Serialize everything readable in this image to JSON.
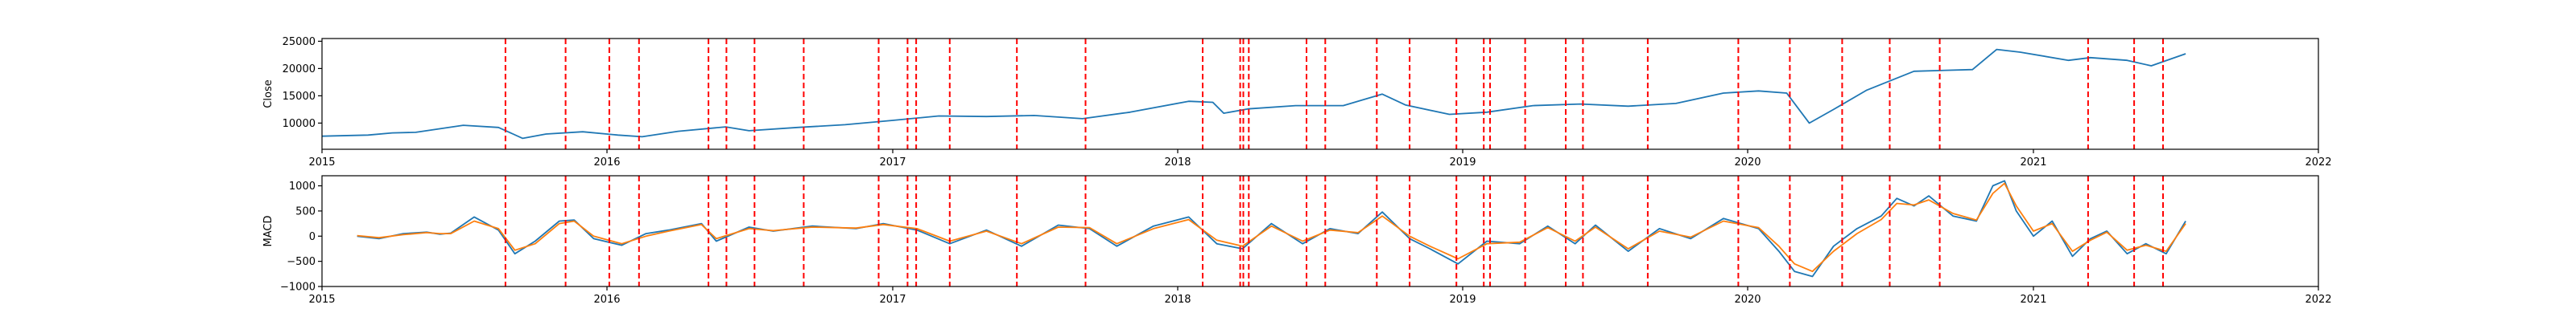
{
  "chart_data": [
    {
      "type": "line",
      "ylabel": "Close",
      "xlim": [
        "2015-01-01",
        "2022-01-01"
      ],
      "ylim": [
        5200,
        25500
      ],
      "xticks": [
        "2015-01-01",
        "2016-01-01",
        "2017-01-01",
        "2018-01-01",
        "2019-01-01",
        "2020-01-01",
        "2021-01-01",
        "2022-01-01"
      ],
      "xtick_labels": [
        "2015",
        "2016",
        "2017",
        "2018",
        "2019",
        "2020",
        "2021",
        "2022"
      ],
      "yticks": [
        10000,
        15000,
        20000,
        25000
      ],
      "ytick_labels": [
        "10000",
        "15000",
        "20000",
        "25000"
      ],
      "grid": false,
      "series": [
        {
          "color": "#1f77b4",
          "x": [
            "2015-01-01",
            "2015-03-01",
            "2015-04-01",
            "2015-05-01",
            "2015-07-01",
            "2015-08-15",
            "2015-09-15",
            "2015-10-15",
            "2015-12-01",
            "2016-01-15",
            "2016-02-15",
            "2016-04-01",
            "2016-06-01",
            "2016-07-01",
            "2016-09-01",
            "2016-11-01",
            "2017-01-01",
            "2017-03-01",
            "2017-05-01",
            "2017-07-01",
            "2017-09-01",
            "2017-11-01",
            "2018-01-15",
            "2018-02-15",
            "2018-03-01",
            "2018-04-01",
            "2018-06-01",
            "2018-08-01",
            "2018-09-20",
            "2018-10-20",
            "2018-12-15",
            "2019-02-01",
            "2019-04-01",
            "2019-06-01",
            "2019-08-01",
            "2019-10-01",
            "2019-12-01",
            "2020-01-15",
            "2020-02-20",
            "2020-03-20",
            "2020-04-20",
            "2020-06-01",
            "2020-08-01",
            "2020-10-15",
            "2020-11-15",
            "2020-12-15",
            "2021-02-15",
            "2021-03-15",
            "2021-05-01",
            "2021-06-01",
            "2021-07-15"
          ],
          "y": [
            7600,
            7800,
            8200,
            8300,
            9600,
            9200,
            7200,
            8000,
            8400,
            7800,
            7500,
            8500,
            9300,
            8600,
            9200,
            9700,
            10500,
            11300,
            11200,
            11400,
            10800,
            12000,
            14000,
            13800,
            11800,
            12600,
            13200,
            13200,
            15300,
            13300,
            11600,
            12000,
            13200,
            13500,
            13100,
            13600,
            15500,
            15900,
            15500,
            10000,
            12500,
            16000,
            19500,
            19800,
            23500,
            23000,
            21500,
            22000,
            21500,
            20500,
            22700
          ]
        }
      ],
      "vlines": {
        "color": "#ff0000",
        "style": "dashed",
        "x": [
          "2015-08-24",
          "2015-11-09",
          "2016-01-04",
          "2016-02-11",
          "2016-05-10",
          "2016-06-02",
          "2016-07-08",
          "2016-09-09",
          "2016-12-14",
          "2017-01-20",
          "2017-01-31",
          "2017-03-15",
          "2017-06-09",
          "2017-09-05",
          "2018-02-02",
          "2018-03-22",
          "2018-03-26",
          "2018-04-02",
          "2018-06-15",
          "2018-07-09",
          "2018-09-13",
          "2018-10-25",
          "2018-12-24",
          "2019-01-28",
          "2019-02-05",
          "2019-03-22",
          "2019-05-13",
          "2019-06-04",
          "2019-08-26",
          "2019-12-20",
          "2020-02-24",
          "2020-05-01",
          "2020-07-01",
          "2020-09-03",
          "2021-03-12",
          "2021-05-10",
          "2021-06-16"
        ]
      }
    },
    {
      "type": "line",
      "ylabel": "MACD",
      "xlim": [
        "2015-01-01",
        "2022-01-01"
      ],
      "ylim": [
        -1000,
        1200
      ],
      "xticks": [
        "2015-01-01",
        "2016-01-01",
        "2017-01-01",
        "2018-01-01",
        "2019-01-01",
        "2020-01-01",
        "2021-01-01",
        "2022-01-01"
      ],
      "xtick_labels": [
        "2015",
        "2016",
        "2017",
        "2018",
        "2019",
        "2020",
        "2021",
        "2022"
      ],
      "yticks": [
        -1000,
        -500,
        0,
        500,
        1000
      ],
      "ytick_labels": [
        "−1000",
        "−500",
        "0",
        "500",
        "1000"
      ],
      "grid": false,
      "series": [
        {
          "color": "#1f77b4",
          "x": [
            "2015-02-15",
            "2015-03-15",
            "2015-04-15",
            "2015-05-15",
            "2015-06-01",
            "2015-06-15",
            "2015-07-15",
            "2015-08-15",
            "2015-09-05",
            "2015-10-01",
            "2015-11-01",
            "2015-11-20",
            "2015-12-15",
            "2016-01-20",
            "2016-02-20",
            "2016-03-20",
            "2016-05-01",
            "2016-05-20",
            "2016-07-01",
            "2016-08-01",
            "2016-09-20",
            "2016-11-15",
            "2016-12-20",
            "2017-02-01",
            "2017-03-15",
            "2017-05-01",
            "2017-06-15",
            "2017-08-01",
            "2017-09-10",
            "2017-10-15",
            "2017-12-01",
            "2018-01-15",
            "2018-02-20",
            "2018-03-25",
            "2018-05-01",
            "2018-06-10",
            "2018-07-15",
            "2018-08-20",
            "2018-09-20",
            "2018-10-25",
            "2018-11-20",
            "2018-12-26",
            "2019-02-01",
            "2019-03-15",
            "2019-04-20",
            "2019-05-25",
            "2019-06-20",
            "2019-08-01",
            "2019-09-10",
            "2019-10-20",
            "2019-12-01",
            "2020-01-15",
            "2020-02-10",
            "2020-03-01",
            "2020-03-24",
            "2020-04-20",
            "2020-05-20",
            "2020-06-20",
            "2020-07-10",
            "2020-08-01",
            "2020-08-20",
            "2020-09-20",
            "2020-10-20",
            "2020-11-10",
            "2020-11-25",
            "2020-12-10",
            "2021-01-01",
            "2021-01-25",
            "2021-02-20",
            "2021-03-15",
            "2021-04-05",
            "2021-05-01",
            "2021-05-25",
            "2021-06-20",
            "2021-07-15"
          ],
          "y": [
            0,
            -50,
            50,
            80,
            40,
            60,
            380,
            120,
            -350,
            -100,
            300,
            320,
            -50,
            -180,
            50,
            120,
            250,
            -100,
            180,
            100,
            200,
            150,
            250,
            120,
            -150,
            120,
            -200,
            220,
            150,
            -200,
            200,
            380,
            -150,
            -250,
            250,
            -150,
            150,
            50,
            480,
            -50,
            -250,
            -550,
            -100,
            -150,
            200,
            -150,
            220,
            -300,
            150,
            -50,
            350,
            150,
            -300,
            -700,
            -800,
            -200,
            150,
            400,
            750,
            600,
            800,
            400,
            300,
            1000,
            1100,
            500,
            0,
            300,
            -400,
            -50,
            100,
            -350,
            -150,
            -350,
            300
          ]
        },
        {
          "color": "#ff7f0e",
          "x": [
            "2015-02-15",
            "2015-03-15",
            "2015-04-15",
            "2015-05-15",
            "2015-06-01",
            "2015-06-15",
            "2015-07-15",
            "2015-08-15",
            "2015-09-05",
            "2015-10-01",
            "2015-11-01",
            "2015-11-20",
            "2015-12-15",
            "2016-01-20",
            "2016-02-20",
            "2016-03-20",
            "2016-05-01",
            "2016-05-20",
            "2016-07-01",
            "2016-08-01",
            "2016-09-20",
            "2016-11-15",
            "2016-12-20",
            "2017-02-01",
            "2017-03-15",
            "2017-05-01",
            "2017-06-15",
            "2017-08-01",
            "2017-09-10",
            "2017-10-15",
            "2017-12-01",
            "2018-01-15",
            "2018-02-20",
            "2018-03-25",
            "2018-05-01",
            "2018-06-10",
            "2018-07-15",
            "2018-08-20",
            "2018-09-20",
            "2018-10-25",
            "2018-11-20",
            "2018-12-26",
            "2019-02-01",
            "2019-03-15",
            "2019-04-20",
            "2019-05-25",
            "2019-06-20",
            "2019-08-01",
            "2019-09-10",
            "2019-10-20",
            "2019-12-01",
            "2020-01-15",
            "2020-02-10",
            "2020-03-01",
            "2020-03-24",
            "2020-04-20",
            "2020-05-20",
            "2020-06-20",
            "2020-07-10",
            "2020-08-01",
            "2020-08-20",
            "2020-09-20",
            "2020-10-20",
            "2020-11-10",
            "2020-11-25",
            "2020-12-10",
            "2021-01-01",
            "2021-01-25",
            "2021-02-20",
            "2021-03-15",
            "2021-04-05",
            "2021-05-01",
            "2021-05-25",
            "2021-06-20",
            "2021-07-15"
          ],
          "y": [
            10,
            -30,
            30,
            70,
            50,
            50,
            300,
            150,
            -280,
            -150,
            250,
            300,
            0,
            -150,
            0,
            100,
            230,
            -50,
            150,
            110,
            180,
            160,
            230,
            150,
            -100,
            100,
            -150,
            180,
            170,
            -150,
            150,
            330,
            -80,
            -200,
            200,
            -100,
            120,
            70,
            400,
            0,
            -200,
            -450,
            -150,
            -120,
            170,
            -100,
            180,
            -250,
            100,
            -20,
            300,
            170,
            -200,
            -550,
            -700,
            -300,
            50,
            330,
            650,
            620,
            720,
            450,
            320,
            850,
            1050,
            600,
            100,
            250,
            -300,
            -80,
            80,
            -280,
            -180,
            -300,
            250
          ]
        }
      ],
      "vlines": {
        "color": "#ff0000",
        "style": "dashed",
        "x": [
          "2015-08-24",
          "2015-11-09",
          "2016-01-04",
          "2016-02-11",
          "2016-05-10",
          "2016-06-02",
          "2016-07-08",
          "2016-09-09",
          "2016-12-14",
          "2017-01-20",
          "2017-01-31",
          "2017-03-15",
          "2017-06-09",
          "2017-09-05",
          "2018-02-02",
          "2018-03-22",
          "2018-03-26",
          "2018-04-02",
          "2018-06-15",
          "2018-07-09",
          "2018-09-13",
          "2018-10-25",
          "2018-12-24",
          "2019-01-28",
          "2019-02-05",
          "2019-03-22",
          "2019-05-13",
          "2019-06-04",
          "2019-08-26",
          "2019-12-20",
          "2020-02-24",
          "2020-05-01",
          "2020-07-01",
          "2020-09-03",
          "2021-03-12",
          "2021-05-10",
          "2021-06-16"
        ]
      }
    }
  ]
}
